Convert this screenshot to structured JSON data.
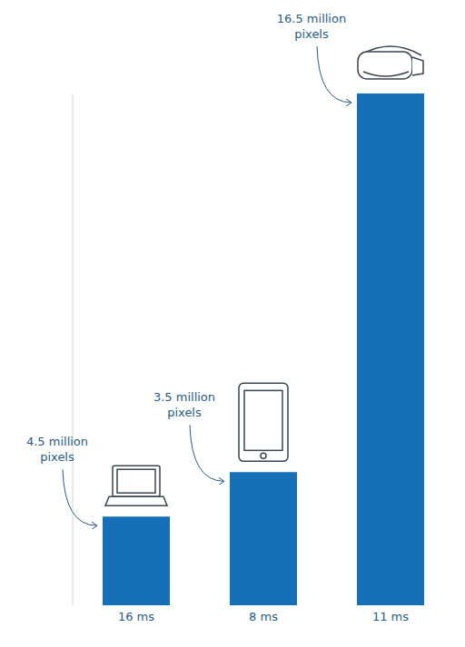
{
  "chart_data": {
    "type": "bar",
    "categories": [
      "16 ms",
      "8 ms",
      "11 ms"
    ],
    "values": [
      0.26,
      0.39,
      1.5
    ],
    "annotations": [
      "4.5 million pixels",
      "3.5 million pixels",
      "16.5 million pixels"
    ],
    "color": "#1670b8",
    "ylim": [
      0,
      1.5
    ],
    "tick_labels": "x",
    "grid": false
  }
}
